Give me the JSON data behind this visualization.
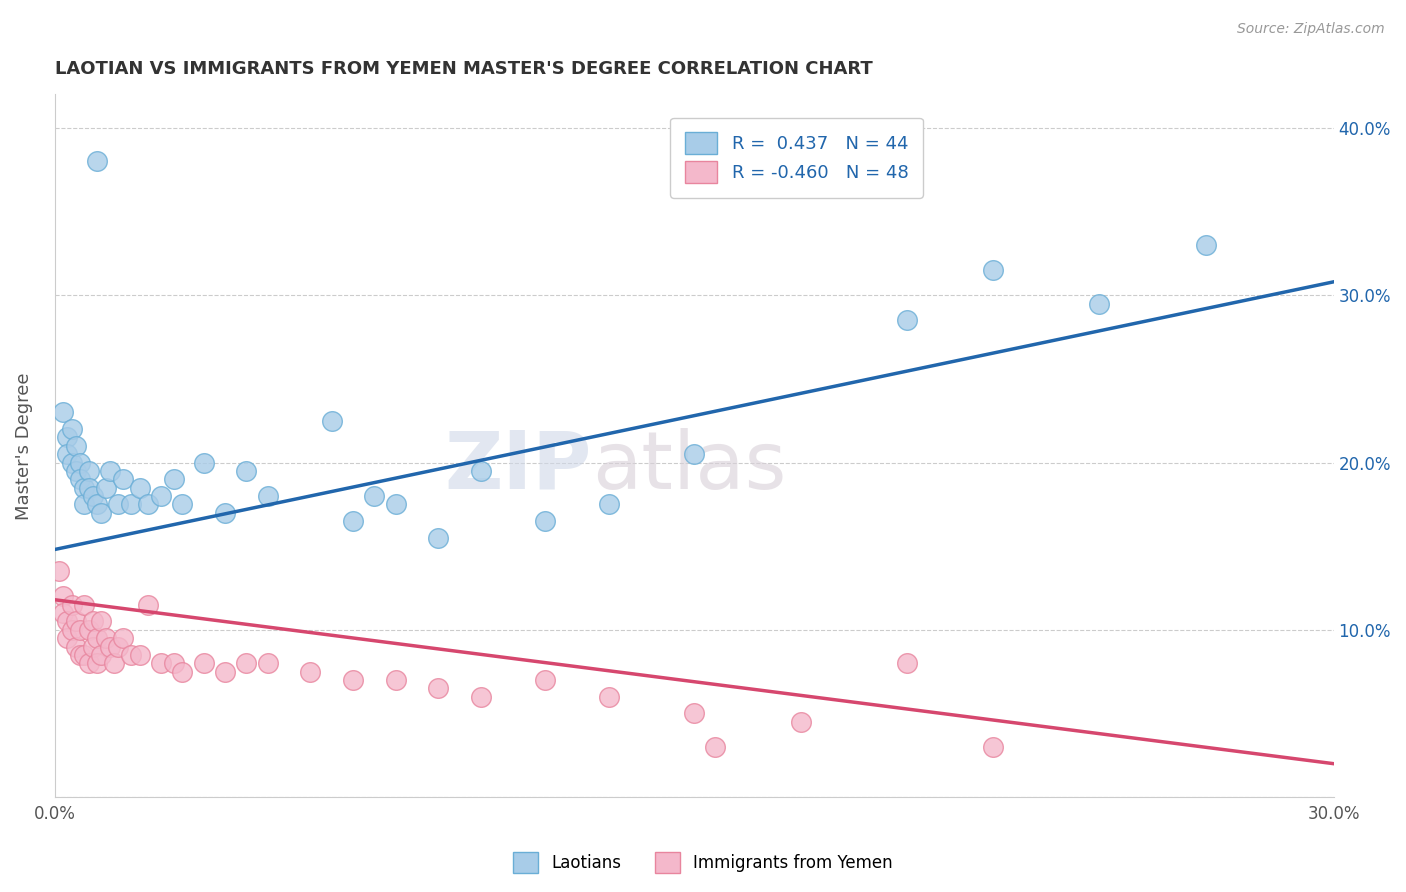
{
  "title": "LAOTIAN VS IMMIGRANTS FROM YEMEN MASTER'S DEGREE CORRELATION CHART",
  "source": "Source: ZipAtlas.com",
  "ylabel": "Master's Degree",
  "blue_R": 0.437,
  "blue_N": 44,
  "pink_R": -0.46,
  "pink_N": 48,
  "legend_label_blue": "Laotians",
  "legend_label_pink": "Immigrants from Yemen",
  "watermark_zip": "ZIP",
  "watermark_atlas": "atlas",
  "blue_color": "#a8cce8",
  "blue_edge_color": "#6aaed6",
  "pink_color": "#f4b8cb",
  "pink_edge_color": "#e8859e",
  "blue_line_color": "#2166ac",
  "pink_line_color": "#d6476e",
  "xlim": [
    0.0,
    0.3
  ],
  "ylim": [
    0.0,
    0.42
  ],
  "x_ticks": [
    0.0,
    0.05,
    0.1,
    0.15,
    0.2,
    0.25,
    0.3
  ],
  "x_tick_labels": [
    "0.0%",
    "",
    "",
    "",
    "",
    "",
    "30.0%"
  ],
  "y_ticks": [
    0.0,
    0.1,
    0.2,
    0.3,
    0.4
  ],
  "y_tick_labels_right": [
    "",
    "10.0%",
    "20.0%",
    "30.0%",
    "40.0%"
  ],
  "blue_scatter_x": [
    0.002,
    0.003,
    0.003,
    0.004,
    0.004,
    0.005,
    0.005,
    0.006,
    0.006,
    0.007,
    0.007,
    0.008,
    0.008,
    0.009,
    0.01,
    0.01,
    0.011,
    0.012,
    0.013,
    0.015,
    0.016,
    0.018,
    0.02,
    0.022,
    0.025,
    0.028,
    0.03,
    0.035,
    0.04,
    0.045,
    0.05,
    0.065,
    0.07,
    0.075,
    0.08,
    0.09,
    0.1,
    0.115,
    0.13,
    0.15,
    0.2,
    0.22,
    0.245,
    0.27
  ],
  "blue_scatter_y": [
    0.23,
    0.215,
    0.205,
    0.22,
    0.2,
    0.21,
    0.195,
    0.2,
    0.19,
    0.185,
    0.175,
    0.195,
    0.185,
    0.18,
    0.175,
    0.38,
    0.17,
    0.185,
    0.195,
    0.175,
    0.19,
    0.175,
    0.185,
    0.175,
    0.18,
    0.19,
    0.175,
    0.2,
    0.17,
    0.195,
    0.18,
    0.225,
    0.165,
    0.18,
    0.175,
    0.155,
    0.195,
    0.165,
    0.175,
    0.205,
    0.285,
    0.315,
    0.295,
    0.33
  ],
  "pink_scatter_x": [
    0.001,
    0.002,
    0.002,
    0.003,
    0.003,
    0.004,
    0.004,
    0.005,
    0.005,
    0.006,
    0.006,
    0.007,
    0.007,
    0.008,
    0.008,
    0.009,
    0.009,
    0.01,
    0.01,
    0.011,
    0.011,
    0.012,
    0.013,
    0.014,
    0.015,
    0.016,
    0.018,
    0.02,
    0.022,
    0.025,
    0.028,
    0.03,
    0.035,
    0.04,
    0.045,
    0.05,
    0.06,
    0.07,
    0.08,
    0.09,
    0.1,
    0.115,
    0.13,
    0.15,
    0.155,
    0.175,
    0.2,
    0.22
  ],
  "pink_scatter_y": [
    0.135,
    0.12,
    0.11,
    0.105,
    0.095,
    0.115,
    0.1,
    0.09,
    0.105,
    0.085,
    0.1,
    0.085,
    0.115,
    0.08,
    0.1,
    0.09,
    0.105,
    0.08,
    0.095,
    0.085,
    0.105,
    0.095,
    0.09,
    0.08,
    0.09,
    0.095,
    0.085,
    0.085,
    0.115,
    0.08,
    0.08,
    0.075,
    0.08,
    0.075,
    0.08,
    0.08,
    0.075,
    0.07,
    0.07,
    0.065,
    0.06,
    0.07,
    0.06,
    0.05,
    0.03,
    0.045,
    0.08,
    0.03
  ],
  "blue_line_x": [
    0.0,
    0.3
  ],
  "blue_line_y": [
    0.148,
    0.308
  ],
  "pink_line_x": [
    0.0,
    0.3
  ],
  "pink_line_y": [
    0.118,
    0.02
  ]
}
